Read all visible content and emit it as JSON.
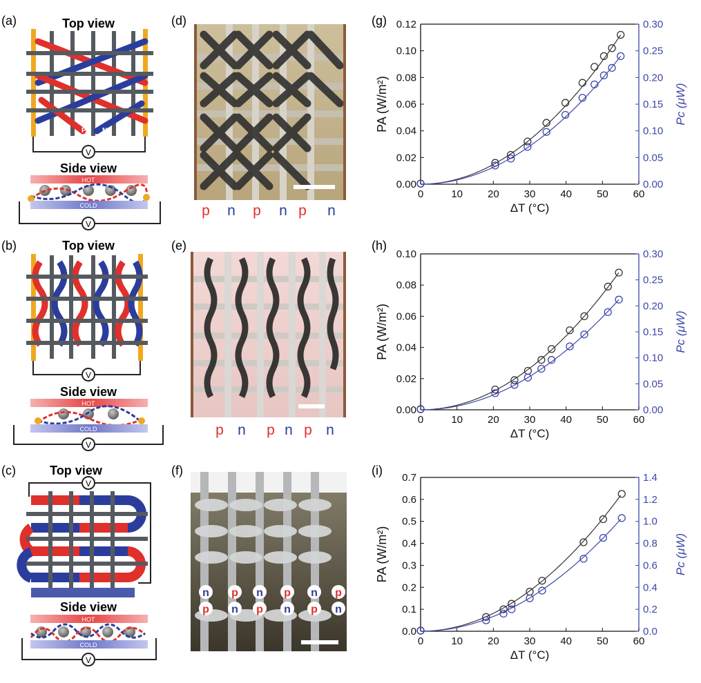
{
  "labels": {
    "panel_a": "(a)",
    "panel_b": "(b)",
    "panel_c": "(c)",
    "panel_d": "(d)",
    "panel_e": "(e)",
    "panel_f": "(f)",
    "panel_g": "(g)",
    "panel_h": "(h)",
    "panel_i": "(i)",
    "top_view": "Top view",
    "side_view": "Side view",
    "hot": "HOT",
    "cold": "COLD",
    "voltmeter": "V",
    "p": "P",
    "n": "N",
    "leg_p": "p",
    "leg_n": "n"
  },
  "legend_rows": {
    "d": [
      "p",
      "n",
      "p",
      "n",
      "p",
      "n"
    ],
    "e": [
      "p",
      "n",
      "p",
      "n",
      "p",
      "n"
    ],
    "f_row1": [
      "n",
      "p",
      "n",
      "p",
      "n",
      "p"
    ],
    "f_row2": [
      "p",
      "n",
      "p",
      "n",
      "p",
      "n"
    ]
  },
  "colors": {
    "p_type": "#e0302c",
    "n_type": "#2b3d9c",
    "electrode": "#f0a820",
    "frame": "#555a60",
    "hot": "#e64545",
    "cold": "#6f78c8",
    "fit_black": "#333333",
    "series_blue": "#3c46a8"
  },
  "chart_data": [
    {
      "id": "g",
      "type": "scatter",
      "xlabel": "ΔT (°C)",
      "ylabel": "PA (W/m²)",
      "y2label": "Pc (μW)",
      "xlim": [
        0,
        60
      ],
      "xticks": [
        "0",
        "10",
        "20",
        "30",
        "40",
        "50",
        "60"
      ],
      "ylim": [
        0,
        0.12
      ],
      "yticks": [
        "0.00",
        "0.02",
        "0.04",
        "0.06",
        "0.08",
        "0.10",
        "0.12"
      ],
      "y2lim": [
        0,
        0.3
      ],
      "y2ticks": [
        "0.00",
        "0.05",
        "0.10",
        "0.15",
        "0.20",
        "0.25",
        "0.30"
      ],
      "series": [
        {
          "axis": "left",
          "color": "#333333",
          "x": [
            0,
            20.5,
            24.8,
            29.4,
            34.6,
            39.8,
            44.5,
            47.8,
            50.4,
            52.6,
            55.0
          ],
          "y": [
            0.0005,
            0.016,
            0.022,
            0.032,
            0.046,
            0.061,
            0.076,
            0.088,
            0.096,
            0.102,
            0.112
          ]
        },
        {
          "axis": "right",
          "color": "#3c46a8",
          "x": [
            0,
            20.5,
            24.8,
            29.4,
            34.6,
            39.8,
            44.5,
            47.8,
            50.4,
            52.6,
            55.0
          ],
          "y": [
            0.001,
            0.035,
            0.048,
            0.07,
            0.098,
            0.13,
            0.162,
            0.187,
            0.204,
            0.218,
            0.24
          ]
        }
      ]
    },
    {
      "id": "h",
      "type": "scatter",
      "xlabel": "ΔT (°C)",
      "ylabel": "PA (W/m²)",
      "y2label": "Pc (μW)",
      "xlim": [
        0,
        60
      ],
      "xticks": [
        "0",
        "10",
        "20",
        "30",
        "40",
        "50",
        "60"
      ],
      "ylim": [
        0,
        0.1
      ],
      "yticks": [
        "0.00",
        "0.02",
        "0.04",
        "0.06",
        "0.08",
        "0.10"
      ],
      "y2lim": [
        0,
        0.3
      ],
      "y2ticks": [
        "0.00",
        "0.05",
        "0.10",
        "0.15",
        "0.20",
        "0.25",
        "0.30"
      ],
      "series": [
        {
          "axis": "left",
          "color": "#333333",
          "x": [
            0,
            20.5,
            25.8,
            29.5,
            33.2,
            36.0,
            41.0,
            45.0,
            51.5,
            54.5
          ],
          "y": [
            0.0005,
            0.013,
            0.019,
            0.025,
            0.032,
            0.039,
            0.051,
            0.06,
            0.079,
            0.088
          ]
        },
        {
          "axis": "right",
          "color": "#3c46a8",
          "x": [
            0,
            20.5,
            25.8,
            29.5,
            33.2,
            36.0,
            41.0,
            45.0,
            51.5,
            54.5
          ],
          "y": [
            0.001,
            0.032,
            0.048,
            0.062,
            0.079,
            0.096,
            0.122,
            0.145,
            0.188,
            0.212
          ]
        }
      ]
    },
    {
      "id": "i",
      "type": "scatter",
      "xlabel": "ΔT (°C)",
      "ylabel": "PA (W/m²)",
      "y2label": "Pc (μW)",
      "xlim": [
        0,
        60
      ],
      "xticks": [
        "0",
        "10",
        "20",
        "30",
        "40",
        "50",
        "60"
      ],
      "ylim": [
        0,
        0.7
      ],
      "yticks": [
        "0.0",
        "0.1",
        "0.2",
        "0.3",
        "0.4",
        "0.5",
        "0.6",
        "0.7"
      ],
      "y2lim": [
        0,
        1.4
      ],
      "y2ticks": [
        "0.0",
        "0.2",
        "0.4",
        "0.6",
        "0.8",
        "1.0",
        "1.2",
        "1.4"
      ],
      "series": [
        {
          "axis": "left",
          "color": "#333333",
          "x": [
            0,
            18.0,
            22.8,
            25.0,
            30.0,
            33.4,
            44.8,
            50.2,
            55.3
          ],
          "y": [
            0.003,
            0.065,
            0.1,
            0.125,
            0.18,
            0.23,
            0.405,
            0.51,
            0.625
          ]
        },
        {
          "axis": "right",
          "color": "#3c46a8",
          "x": [
            0,
            18.0,
            22.8,
            25.0,
            30.0,
            33.4,
            44.8,
            50.2,
            55.3
          ],
          "y": [
            0.005,
            0.1,
            0.16,
            0.2,
            0.3,
            0.37,
            0.66,
            0.85,
            1.03
          ]
        }
      ]
    }
  ]
}
